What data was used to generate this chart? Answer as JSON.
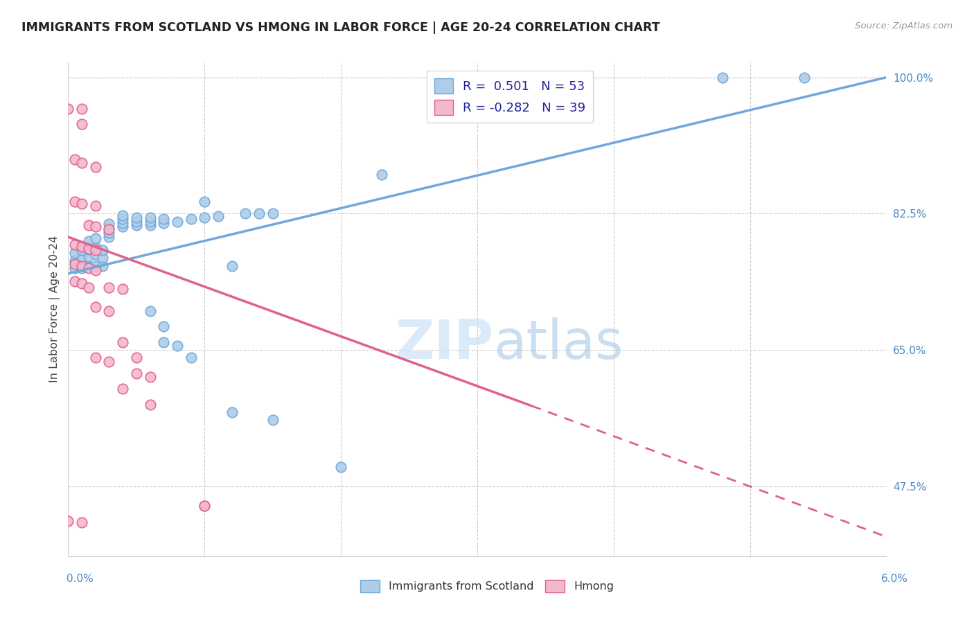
{
  "title": "IMMIGRANTS FROM SCOTLAND VS HMONG IN LABOR FORCE | AGE 20-24 CORRELATION CHART",
  "source": "Source: ZipAtlas.com",
  "ylabel": "In Labor Force | Age 20-24",
  "yticks": [
    "100.0%",
    "82.5%",
    "65.0%",
    "47.5%"
  ],
  "ytick_vals": [
    1.0,
    0.825,
    0.65,
    0.475
  ],
  "xmin": 0.0,
  "xmax": 0.06,
  "ymin": 0.385,
  "ymax": 1.02,
  "scotland_color": "#6fa8dc",
  "scotland_fill": "#aecde8",
  "hmong_color": "#e06090",
  "hmong_fill": "#f4b8cc",
  "scotland_R": 0.501,
  "scotland_N": 53,
  "hmong_R": -0.282,
  "hmong_N": 39,
  "watermark_zip": "ZIP",
  "watermark_atlas": "atlas",
  "legend_scotland": "Immigrants from Scotland",
  "legend_hmong": "Hmong",
  "scotland_line": [
    [
      0.0,
      0.748
    ],
    [
      0.06,
      1.0
    ]
  ],
  "hmong_line_solid": [
    [
      0.0,
      0.795
    ],
    [
      0.034,
      0.578
    ]
  ],
  "hmong_line_dash": [
    [
      0.034,
      0.578
    ],
    [
      0.06,
      0.41
    ]
  ],
  "scotland_points": [
    [
      0.0005,
      0.755
    ],
    [
      0.001,
      0.755
    ],
    [
      0.0015,
      0.757
    ],
    [
      0.002,
      0.758
    ],
    [
      0.0005,
      0.765
    ],
    [
      0.001,
      0.768
    ],
    [
      0.0015,
      0.77
    ],
    [
      0.002,
      0.773
    ],
    [
      0.0005,
      0.775
    ],
    [
      0.001,
      0.778
    ],
    [
      0.0015,
      0.779
    ],
    [
      0.002,
      0.782
    ],
    [
      0.0015,
      0.79
    ],
    [
      0.002,
      0.793
    ],
    [
      0.003,
      0.795
    ],
    [
      0.003,
      0.8
    ],
    [
      0.003,
      0.806
    ],
    [
      0.003,
      0.812
    ],
    [
      0.004,
      0.808
    ],
    [
      0.004,
      0.813
    ],
    [
      0.004,
      0.818
    ],
    [
      0.004,
      0.823
    ],
    [
      0.005,
      0.81
    ],
    [
      0.005,
      0.815
    ],
    [
      0.005,
      0.82
    ],
    [
      0.006,
      0.81
    ],
    [
      0.006,
      0.815
    ],
    [
      0.006,
      0.82
    ],
    [
      0.007,
      0.813
    ],
    [
      0.007,
      0.818
    ],
    [
      0.008,
      0.815
    ],
    [
      0.009,
      0.818
    ],
    [
      0.01,
      0.82
    ],
    [
      0.011,
      0.822
    ],
    [
      0.01,
      0.84
    ],
    [
      0.013,
      0.825
    ],
    [
      0.014,
      0.825
    ],
    [
      0.015,
      0.825
    ],
    [
      0.0025,
      0.758
    ],
    [
      0.0025,
      0.768
    ],
    [
      0.0025,
      0.778
    ],
    [
      0.006,
      0.7
    ],
    [
      0.007,
      0.68
    ],
    [
      0.007,
      0.66
    ],
    [
      0.008,
      0.655
    ],
    [
      0.009,
      0.64
    ],
    [
      0.012,
      0.57
    ],
    [
      0.015,
      0.56
    ],
    [
      0.02,
      0.5
    ],
    [
      0.023,
      0.875
    ],
    [
      0.048,
      1.0
    ],
    [
      0.054,
      1.0
    ],
    [
      0.012,
      0.758
    ]
  ],
  "hmong_points": [
    [
      0.0,
      0.96
    ],
    [
      0.001,
      0.96
    ],
    [
      0.001,
      0.94
    ],
    [
      0.0005,
      0.895
    ],
    [
      0.001,
      0.89
    ],
    [
      0.002,
      0.885
    ],
    [
      0.0005,
      0.84
    ],
    [
      0.001,
      0.838
    ],
    [
      0.002,
      0.835
    ],
    [
      0.0015,
      0.81
    ],
    [
      0.002,
      0.808
    ],
    [
      0.003,
      0.805
    ],
    [
      0.0005,
      0.785
    ],
    [
      0.001,
      0.783
    ],
    [
      0.0015,
      0.78
    ],
    [
      0.002,
      0.778
    ],
    [
      0.0005,
      0.76
    ],
    [
      0.001,
      0.758
    ],
    [
      0.0015,
      0.755
    ],
    [
      0.002,
      0.752
    ],
    [
      0.0005,
      0.738
    ],
    [
      0.001,
      0.735
    ],
    [
      0.0015,
      0.73
    ],
    [
      0.003,
      0.73
    ],
    [
      0.004,
      0.728
    ],
    [
      0.002,
      0.705
    ],
    [
      0.003,
      0.7
    ],
    [
      0.004,
      0.66
    ],
    [
      0.005,
      0.64
    ],
    [
      0.005,
      0.62
    ],
    [
      0.006,
      0.615
    ],
    [
      0.004,
      0.6
    ],
    [
      0.006,
      0.58
    ],
    [
      0.002,
      0.64
    ],
    [
      0.003,
      0.635
    ],
    [
      0.01,
      0.45
    ],
    [
      0.01,
      0.45
    ],
    [
      0.0,
      0.43
    ],
    [
      0.001,
      0.428
    ]
  ]
}
